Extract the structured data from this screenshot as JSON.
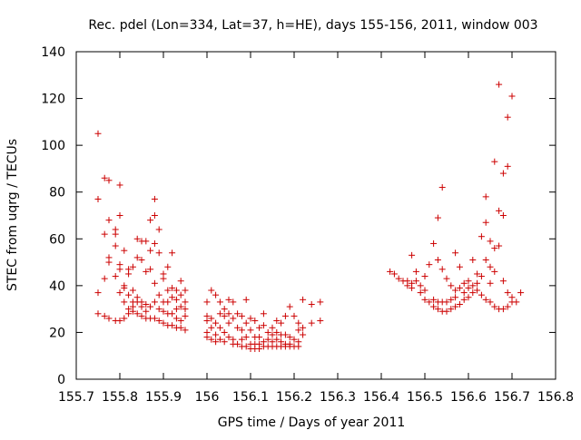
{
  "chart_data": {
    "type": "scatter",
    "title": "Rec. pdel (Lon=334, Lat=37, h=HE), days 155-156, 2011, window 003",
    "xlabel": "GPS time / Days of year 2011",
    "ylabel": "STEC from uqrg / TECUs",
    "xlim": [
      155.7,
      156.8
    ],
    "ylim": [
      0,
      140
    ],
    "x_ticks": [
      155.7,
      155.8,
      155.9,
      156.0,
      156.1,
      156.2,
      156.3,
      156.4,
      156.5,
      156.6,
      156.7,
      156.8
    ],
    "x_tick_labels": [
      "155.7",
      "155.8",
      "155.9",
      "156",
      "156.1",
      "156.2",
      "156.3",
      "156.4",
      "156.5",
      "156.6",
      "156.7",
      "156.8"
    ],
    "y_ticks": [
      0,
      20,
      40,
      60,
      80,
      100,
      120,
      140
    ],
    "y_tick_labels": [
      "0",
      "20",
      "40",
      "60",
      "80",
      "100",
      "120",
      "140"
    ],
    "grid": false,
    "marker": "+",
    "marker_color": "#cc0000",
    "series": [
      {
        "points": [
          [
            155.75,
            105
          ],
          [
            155.75,
            77
          ],
          [
            155.75,
            37
          ],
          [
            155.75,
            28
          ],
          [
            155.765,
            86
          ],
          [
            155.765,
            62
          ],
          [
            155.765,
            43
          ],
          [
            155.765,
            27
          ],
          [
            155.775,
            85
          ],
          [
            155.775,
            68
          ],
          [
            155.775,
            52
          ],
          [
            155.775,
            50
          ],
          [
            155.775,
            26
          ],
          [
            155.79,
            64
          ],
          [
            155.79,
            62
          ],
          [
            155.79,
            57
          ],
          [
            155.79,
            44
          ],
          [
            155.79,
            25
          ],
          [
            155.8,
            83
          ],
          [
            155.8,
            70
          ],
          [
            155.8,
            49
          ],
          [
            155.8,
            47
          ],
          [
            155.8,
            37
          ],
          [
            155.8,
            25
          ],
          [
            155.81,
            55
          ],
          [
            155.81,
            40
          ],
          [
            155.81,
            39
          ],
          [
            155.81,
            33
          ],
          [
            155.81,
            26
          ],
          [
            155.82,
            47
          ],
          [
            155.82,
            45
          ],
          [
            155.82,
            36
          ],
          [
            155.82,
            30
          ],
          [
            155.82,
            28
          ],
          [
            155.83,
            48
          ],
          [
            155.83,
            38
          ],
          [
            155.83,
            33
          ],
          [
            155.83,
            31
          ],
          [
            155.83,
            29
          ],
          [
            155.84,
            60
          ],
          [
            155.84,
            52
          ],
          [
            155.84,
            35
          ],
          [
            155.84,
            33
          ],
          [
            155.84,
            28
          ],
          [
            155.85,
            59
          ],
          [
            155.85,
            51
          ],
          [
            155.85,
            33
          ],
          [
            155.85,
            31
          ],
          [
            155.85,
            27
          ],
          [
            155.86,
            59
          ],
          [
            155.86,
            46
          ],
          [
            155.86,
            32
          ],
          [
            155.86,
            29
          ],
          [
            155.86,
            26
          ],
          [
            155.87,
            68
          ],
          [
            155.87,
            55
          ],
          [
            155.87,
            47
          ],
          [
            155.87,
            31
          ],
          [
            155.87,
            26
          ],
          [
            155.88,
            70
          ],
          [
            155.88,
            77
          ],
          [
            155.88,
            58
          ],
          [
            155.88,
            41
          ],
          [
            155.88,
            33
          ],
          [
            155.88,
            26
          ],
          [
            155.89,
            64
          ],
          [
            155.89,
            54
          ],
          [
            155.89,
            36
          ],
          [
            155.89,
            30
          ],
          [
            155.89,
            25
          ],
          [
            155.9,
            45
          ],
          [
            155.9,
            43
          ],
          [
            155.9,
            33
          ],
          [
            155.9,
            29
          ],
          [
            155.9,
            24
          ],
          [
            155.91,
            48
          ],
          [
            155.91,
            38
          ],
          [
            155.91,
            33
          ],
          [
            155.91,
            28
          ],
          [
            155.91,
            23
          ],
          [
            155.92,
            54
          ],
          [
            155.92,
            39
          ],
          [
            155.92,
            35
          ],
          [
            155.92,
            28
          ],
          [
            155.92,
            23
          ],
          [
            155.93,
            38
          ],
          [
            155.93,
            34
          ],
          [
            155.93,
            30
          ],
          [
            155.93,
            26
          ],
          [
            155.93,
            22
          ],
          [
            155.94,
            42
          ],
          [
            155.94,
            36
          ],
          [
            155.94,
            31
          ],
          [
            155.94,
            25
          ],
          [
            155.94,
            22
          ],
          [
            155.95,
            38
          ],
          [
            155.95,
            33
          ],
          [
            155.95,
            30
          ],
          [
            155.95,
            27
          ],
          [
            155.95,
            21
          ],
          [
            156.0,
            33
          ],
          [
            156.0,
            27
          ],
          [
            156.0,
            25
          ],
          [
            156.0,
            20
          ],
          [
            156.0,
            18
          ],
          [
            156.01,
            38
          ],
          [
            156.01,
            26
          ],
          [
            156.01,
            22
          ],
          [
            156.01,
            17
          ],
          [
            156.02,
            36
          ],
          [
            156.02,
            24
          ],
          [
            156.02,
            19
          ],
          [
            156.02,
            16
          ],
          [
            156.03,
            33
          ],
          [
            156.03,
            28
          ],
          [
            156.03,
            22
          ],
          [
            156.03,
            17
          ],
          [
            156.04,
            30
          ],
          [
            156.04,
            27
          ],
          [
            156.04,
            20
          ],
          [
            156.04,
            16
          ],
          [
            156.05,
            34
          ],
          [
            156.05,
            28
          ],
          [
            156.05,
            24
          ],
          [
            156.05,
            18
          ],
          [
            156.06,
            33
          ],
          [
            156.06,
            26
          ],
          [
            156.06,
            17
          ],
          [
            156.06,
            15
          ],
          [
            156.07,
            28
          ],
          [
            156.07,
            22
          ],
          [
            156.07,
            15
          ],
          [
            156.08,
            27
          ],
          [
            156.08,
            21
          ],
          [
            156.08,
            17
          ],
          [
            156.08,
            14
          ],
          [
            156.09,
            34
          ],
          [
            156.09,
            24
          ],
          [
            156.09,
            18
          ],
          [
            156.09,
            14
          ],
          [
            156.1,
            26
          ],
          [
            156.1,
            21
          ],
          [
            156.1,
            15
          ],
          [
            156.1,
            13
          ],
          [
            156.11,
            25
          ],
          [
            156.11,
            18
          ],
          [
            156.11,
            15
          ],
          [
            156.11,
            13
          ],
          [
            156.12,
            22
          ],
          [
            156.12,
            18
          ],
          [
            156.12,
            15
          ],
          [
            156.12,
            13
          ],
          [
            156.13,
            28
          ],
          [
            156.13,
            23
          ],
          [
            156.13,
            16
          ],
          [
            156.13,
            14
          ],
          [
            156.14,
            20
          ],
          [
            156.14,
            17
          ],
          [
            156.14,
            14
          ],
          [
            156.15,
            22
          ],
          [
            156.15,
            19
          ],
          [
            156.15,
            16
          ],
          [
            156.15,
            14
          ],
          [
            156.16,
            25
          ],
          [
            156.16,
            20
          ],
          [
            156.16,
            17
          ],
          [
            156.16,
            14
          ],
          [
            156.17,
            24
          ],
          [
            156.17,
            19
          ],
          [
            156.17,
            16
          ],
          [
            156.17,
            14
          ],
          [
            156.18,
            27
          ],
          [
            156.18,
            19
          ],
          [
            156.18,
            15
          ],
          [
            156.18,
            14
          ],
          [
            156.19,
            31
          ],
          [
            156.19,
            18
          ],
          [
            156.19,
            15
          ],
          [
            156.19,
            14
          ],
          [
            156.2,
            27
          ],
          [
            156.2,
            17
          ],
          [
            156.2,
            14
          ],
          [
            156.21,
            24
          ],
          [
            156.21,
            21
          ],
          [
            156.21,
            16
          ],
          [
            156.21,
            14
          ],
          [
            156.22,
            34
          ],
          [
            156.22,
            22
          ],
          [
            156.22,
            19
          ],
          [
            156.24,
            32
          ],
          [
            156.24,
            24
          ],
          [
            156.26,
            33
          ],
          [
            156.26,
            25
          ],
          [
            156.42,
            46
          ],
          [
            156.43,
            45
          ],
          [
            156.44,
            43
          ],
          [
            156.45,
            42
          ],
          [
            156.46,
            42
          ],
          [
            156.46,
            40
          ],
          [
            156.47,
            53
          ],
          [
            156.47,
            41
          ],
          [
            156.47,
            39
          ],
          [
            156.48,
            46
          ],
          [
            156.48,
            42
          ],
          [
            156.49,
            40
          ],
          [
            156.49,
            37
          ],
          [
            156.5,
            44
          ],
          [
            156.5,
            38
          ],
          [
            156.5,
            34
          ],
          [
            156.51,
            49
          ],
          [
            156.51,
            33
          ],
          [
            156.52,
            58
          ],
          [
            156.52,
            34
          ],
          [
            156.52,
            31
          ],
          [
            156.53,
            69
          ],
          [
            156.53,
            51
          ],
          [
            156.53,
            33
          ],
          [
            156.53,
            30
          ],
          [
            156.54,
            82
          ],
          [
            156.54,
            47
          ],
          [
            156.54,
            33
          ],
          [
            156.54,
            29
          ],
          [
            156.55,
            43
          ],
          [
            156.55,
            33
          ],
          [
            156.55,
            29
          ],
          [
            156.56,
            40
          ],
          [
            156.56,
            34
          ],
          [
            156.56,
            30
          ],
          [
            156.57,
            54
          ],
          [
            156.57,
            38
          ],
          [
            156.57,
            35
          ],
          [
            156.57,
            31
          ],
          [
            156.58,
            48
          ],
          [
            156.58,
            39
          ],
          [
            156.58,
            32
          ],
          [
            156.59,
            41
          ],
          [
            156.59,
            37
          ],
          [
            156.59,
            34
          ],
          [
            156.6,
            42
          ],
          [
            156.6,
            39
          ],
          [
            156.6,
            35
          ],
          [
            156.61,
            51
          ],
          [
            156.61,
            40
          ],
          [
            156.61,
            37
          ],
          [
            156.62,
            45
          ],
          [
            156.62,
            41
          ],
          [
            156.62,
            38
          ],
          [
            156.63,
            61
          ],
          [
            156.63,
            44
          ],
          [
            156.63,
            36
          ],
          [
            156.64,
            78
          ],
          [
            156.64,
            67
          ],
          [
            156.64,
            51
          ],
          [
            156.64,
            34
          ],
          [
            156.65,
            59
          ],
          [
            156.65,
            48
          ],
          [
            156.65,
            41
          ],
          [
            156.65,
            33
          ],
          [
            156.66,
            93
          ],
          [
            156.66,
            56
          ],
          [
            156.66,
            46
          ],
          [
            156.66,
            31
          ],
          [
            156.67,
            126
          ],
          [
            156.67,
            72
          ],
          [
            156.67,
            57
          ],
          [
            156.67,
            30
          ],
          [
            156.68,
            88
          ],
          [
            156.68,
            70
          ],
          [
            156.68,
            42
          ],
          [
            156.68,
            30
          ],
          [
            156.69,
            112
          ],
          [
            156.69,
            91
          ],
          [
            156.69,
            37
          ],
          [
            156.69,
            31
          ],
          [
            156.7,
            121
          ],
          [
            156.7,
            35
          ],
          [
            156.7,
            33
          ],
          [
            156.71,
            33
          ],
          [
            156.72,
            37
          ]
        ]
      }
    ]
  }
}
